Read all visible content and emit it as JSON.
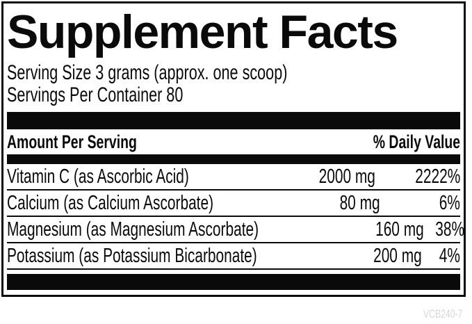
{
  "label": {
    "title": "Supplement Facts",
    "serving_size": "Serving Size 3 grams (approx. one scoop)",
    "servings_per_container": "Servings Per Container 80",
    "header": {
      "amount": "Amount Per Serving",
      "daily_value": "% Daily Value"
    },
    "rows": [
      {
        "name": "Vitamin C (as Ascorbic Acid)",
        "amount": "2000 mg",
        "dv": "2222%"
      },
      {
        "name": "Calcium (as Calcium Ascorbate)",
        "amount": "80 mg",
        "dv": "6%"
      },
      {
        "name": "Magnesium (as Magnesium Ascorbate)",
        "amount": "160 mg",
        "dv": "38%"
      },
      {
        "name": "Potassium (as Potassium Bicarbonate)",
        "amount": "200 mg",
        "dv": "4%"
      }
    ],
    "footer_code": "VCB240-7",
    "colors": {
      "text": "#0a0a0a",
      "background": "#ffffff",
      "code_text": "#d7d7d7"
    }
  }
}
